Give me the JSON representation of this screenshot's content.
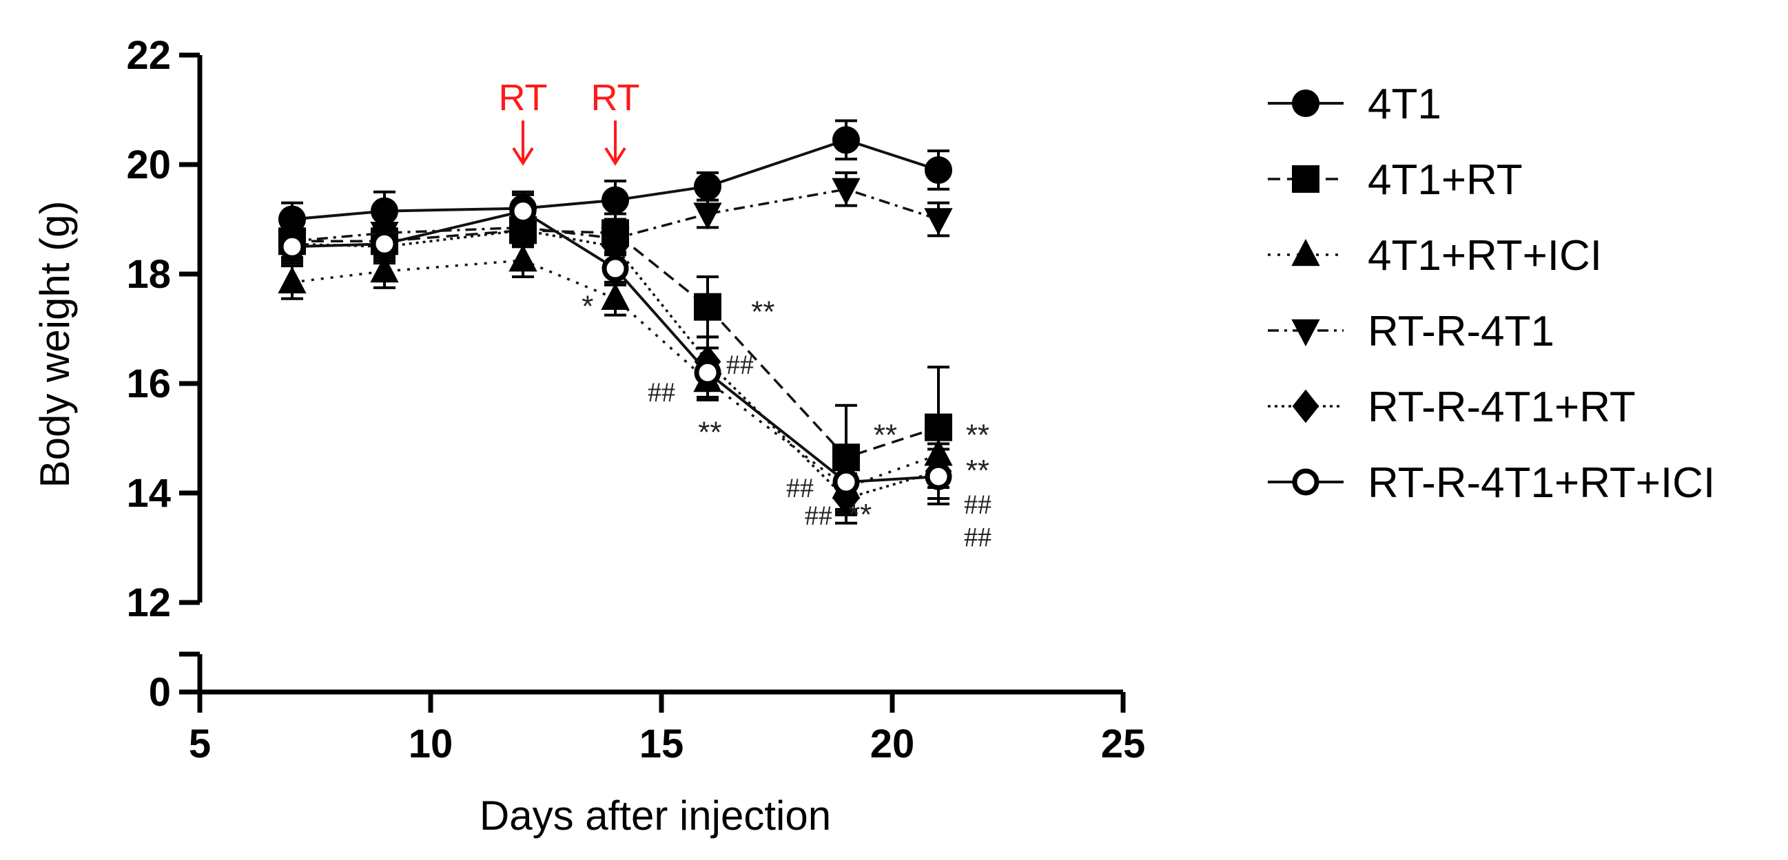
{
  "chart_data": {
    "type": "line",
    "title": "",
    "xlabel": "Days after injection",
    "ylabel": "Body weight (g)",
    "xlim": [
      5,
      25
    ],
    "ylim": [
      12,
      22
    ],
    "y_broken_axis": {
      "lower_ticks": [
        "0"
      ]
    },
    "x_ticks": [
      "5",
      "10",
      "15",
      "20",
      "25"
    ],
    "y_ticks": [
      "12",
      "14",
      "16",
      "18",
      "20",
      "22"
    ],
    "x": [
      7,
      9,
      12,
      14,
      16,
      19,
      21
    ],
    "series": [
      {
        "name": "4T1",
        "marker": "circle-filled",
        "line": "solid",
        "values": [
          19.0,
          19.15,
          19.2,
          19.35,
          19.6,
          20.45,
          19.9
        ],
        "errors": [
          0.3,
          0.35,
          0.3,
          0.35,
          0.25,
          0.35,
          0.35
        ]
      },
      {
        "name": "4T1+RT",
        "marker": "square-filled",
        "line": "dashed",
        "values": [
          18.6,
          18.6,
          18.8,
          18.75,
          17.4,
          14.65,
          15.2
        ],
        "errors": [
          0.3,
          0.3,
          0.3,
          0.35,
          0.55,
          0.95,
          1.1
        ]
      },
      {
        "name": "4T1+RT+ICI",
        "marker": "triangle-up-filled",
        "line": "dotted",
        "values": [
          17.85,
          18.05,
          18.25,
          17.55,
          16.05,
          14.1,
          14.7
        ],
        "errors": [
          0.3,
          0.3,
          0.3,
          0.3,
          0.35,
          0.5,
          0.5
        ]
      },
      {
        "name": "RT-R-4T1",
        "marker": "triangle-down-filled",
        "line": "dashdot",
        "values": [
          18.6,
          18.75,
          18.85,
          18.65,
          19.1,
          19.55,
          19.0
        ],
        "errors": [
          0.3,
          0.3,
          0.3,
          0.3,
          0.25,
          0.3,
          0.3
        ]
      },
      {
        "name": "RT-R-4T1+RT",
        "marker": "diamond-filled",
        "line": "densedot",
        "values": [
          18.55,
          18.5,
          18.8,
          18.5,
          16.4,
          13.9,
          14.4
        ],
        "errors": [
          0.3,
          0.3,
          0.3,
          0.3,
          0.45,
          0.45,
          0.5
        ]
      },
      {
        "name": "RT-R-4T1+RT+ICI",
        "marker": "circle-open",
        "line": "solid",
        "values": [
          18.5,
          18.55,
          19.15,
          18.1,
          16.2,
          14.2,
          14.3
        ],
        "errors": [
          0.3,
          0.3,
          0.3,
          0.3,
          0.45,
          0.55,
          0.5
        ]
      }
    ],
    "annotations": [
      {
        "text": "RT",
        "x": 12,
        "kind": "arrow",
        "color": "#ff1a1a"
      },
      {
        "text": "RT",
        "x": 14,
        "kind": "arrow",
        "color": "#ff1a1a"
      },
      {
        "text": "*",
        "x": 13.4,
        "y": 17.4,
        "kind": "sig"
      },
      {
        "text": "**",
        "x": 17.2,
        "y": 17.3,
        "kind": "sig"
      },
      {
        "text": "##",
        "x": 16.7,
        "y": 16.35,
        "kind": "sig"
      },
      {
        "text": "##",
        "x": 15.0,
        "y": 15.85,
        "kind": "sig"
      },
      {
        "text": "**",
        "x": 16.05,
        "y": 15.1,
        "kind": "sig"
      },
      {
        "text": "**",
        "x": 19.85,
        "y": 15.05,
        "kind": "sig"
      },
      {
        "text": "##",
        "x": 18.0,
        "y": 14.1,
        "kind": "sig"
      },
      {
        "text": "##",
        "x": 18.4,
        "y": 13.6,
        "kind": "sig"
      },
      {
        "text": "**",
        "x": 19.3,
        "y": 13.6,
        "kind": "sig"
      },
      {
        "text": "**",
        "x": 21.85,
        "y": 15.05,
        "kind": "sig"
      },
      {
        "text": "**",
        "x": 21.85,
        "y": 14.4,
        "kind": "sig"
      },
      {
        "text": "##",
        "x": 21.85,
        "y": 13.8,
        "kind": "sig"
      },
      {
        "text": "##",
        "x": 21.85,
        "y": 13.2,
        "kind": "sig"
      }
    ],
    "legend_position": "right"
  }
}
